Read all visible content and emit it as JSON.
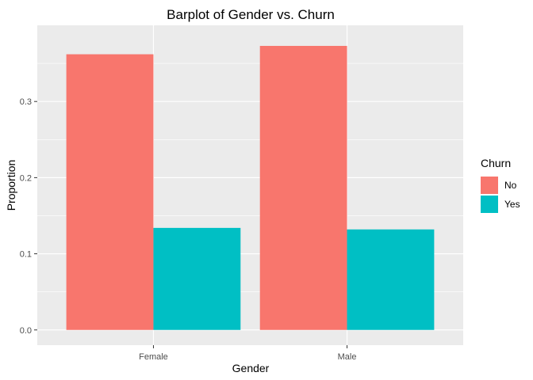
{
  "chart_data": {
    "type": "bar",
    "title": "Barplot of Gender vs. Churn",
    "xlabel": "Gender",
    "ylabel": "Proportion",
    "categories": [
      "Female",
      "Male"
    ],
    "series": [
      {
        "name": "No",
        "values": [
          0.362,
          0.373
        ],
        "color": "#F8766D"
      },
      {
        "name": "Yes",
        "values": [
          0.134,
          0.132
        ],
        "color": "#00BFC4"
      }
    ],
    "ylim": [
      -0.02,
      0.4
    ],
    "yticks": [
      0.0,
      0.1,
      0.2,
      0.3
    ],
    "ytick_labels": [
      "0.0",
      "0.1",
      "0.2",
      "0.3"
    ],
    "legend": {
      "title": "Churn",
      "position": "right"
    },
    "grid": true,
    "panel_background": "#EBEBEB"
  }
}
